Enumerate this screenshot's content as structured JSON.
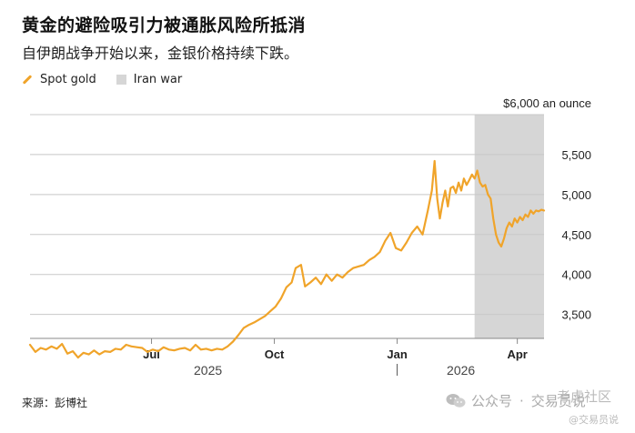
{
  "title": "黄金的避险吸引力被通胀风险所抵消",
  "subtitle": "自伊朗战争开始以来，金银价格持续下跌。",
  "legend": [
    {
      "label": "Spot gold",
      "color": "#f0a42a"
    },
    {
      "label": "Iran war",
      "color": "#d6d6d6"
    }
  ],
  "source": "来源：彭博社",
  "footer": {
    "brand": "公众号",
    "separator": "·",
    "account": "交易员说"
  },
  "watermark": {
    "main": "考虎社区",
    "sub": "@交易员说"
  },
  "chart_data": {
    "type": "line",
    "ylabel_unit": "$6,000 an ounce",
    "ylim": [
      3200,
      6000
    ],
    "yticks": [
      {
        "value": 6000,
        "label": "$6,000 an ounce"
      },
      {
        "value": 5500,
        "label": "5,500"
      },
      {
        "value": 5000,
        "label": "5,000"
      },
      {
        "value": 4500,
        "label": "4,500"
      },
      {
        "value": 4000,
        "label": "4,000"
      },
      {
        "value": 3500,
        "label": "3,500"
      }
    ],
    "xlim": [
      "2025-04-01",
      "2026-04-21"
    ],
    "xticks": [
      {
        "date": "2025-07-01",
        "label": "Jul"
      },
      {
        "date": "2025-10-01",
        "label": "Oct"
      },
      {
        "date": "2026-01-01",
        "label": "Jan"
      },
      {
        "date": "2026-04-01",
        "label": "Apr"
      }
    ],
    "year_labels": [
      {
        "date": "2025-08-15",
        "label": "2025"
      },
      {
        "date": "2026-02-15",
        "label": "2026"
      }
    ],
    "year_divider": "2026-01-01",
    "shaded_period": {
      "name": "Iran war",
      "start": "2026-02-28",
      "end": "2026-04-21"
    },
    "grid": true,
    "series": [
      {
        "name": "Spot gold",
        "color": "#f0a42a",
        "points": [
          [
            "2025-04-01",
            3120
          ],
          [
            "2025-04-05",
            3030
          ],
          [
            "2025-04-09",
            3080
          ],
          [
            "2025-04-13",
            3060
          ],
          [
            "2025-04-17",
            3100
          ],
          [
            "2025-04-21",
            3070
          ],
          [
            "2025-04-25",
            3130
          ],
          [
            "2025-04-29",
            3010
          ],
          [
            "2025-05-03",
            3040
          ],
          [
            "2025-05-07",
            2960
          ],
          [
            "2025-05-11",
            3020
          ],
          [
            "2025-05-15",
            3000
          ],
          [
            "2025-05-19",
            3050
          ],
          [
            "2025-05-23",
            3000
          ],
          [
            "2025-05-27",
            3040
          ],
          [
            "2025-05-31",
            3030
          ],
          [
            "2025-06-04",
            3070
          ],
          [
            "2025-06-08",
            3060
          ],
          [
            "2025-06-12",
            3120
          ],
          [
            "2025-06-16",
            3100
          ],
          [
            "2025-06-20",
            3090
          ],
          [
            "2025-06-24",
            3080
          ],
          [
            "2025-06-28",
            3030
          ],
          [
            "2025-07-02",
            3060
          ],
          [
            "2025-07-06",
            3040
          ],
          [
            "2025-07-10",
            3090
          ],
          [
            "2025-07-14",
            3060
          ],
          [
            "2025-07-18",
            3050
          ],
          [
            "2025-07-22",
            3070
          ],
          [
            "2025-07-26",
            3080
          ],
          [
            "2025-07-30",
            3050
          ],
          [
            "2025-08-03",
            3120
          ],
          [
            "2025-08-07",
            3060
          ],
          [
            "2025-08-11",
            3070
          ],
          [
            "2025-08-15",
            3050
          ],
          [
            "2025-08-19",
            3070
          ],
          [
            "2025-08-23",
            3060
          ],
          [
            "2025-08-27",
            3100
          ],
          [
            "2025-08-31",
            3160
          ],
          [
            "2025-09-04",
            3240
          ],
          [
            "2025-09-08",
            3330
          ],
          [
            "2025-09-12",
            3370
          ],
          [
            "2025-09-16",
            3400
          ],
          [
            "2025-09-20",
            3440
          ],
          [
            "2025-09-24",
            3480
          ],
          [
            "2025-09-28",
            3540
          ],
          [
            "2025-10-02",
            3600
          ],
          [
            "2025-10-06",
            3700
          ],
          [
            "2025-10-10",
            3840
          ],
          [
            "2025-10-14",
            3900
          ],
          [
            "2025-10-17",
            4080
          ],
          [
            "2025-10-21",
            4120
          ],
          [
            "2025-10-24",
            3850
          ],
          [
            "2025-10-28",
            3900
          ],
          [
            "2025-11-01",
            3960
          ],
          [
            "2025-11-05",
            3880
          ],
          [
            "2025-11-09",
            4000
          ],
          [
            "2025-11-13",
            3920
          ],
          [
            "2025-11-17",
            4000
          ],
          [
            "2025-11-21",
            3960
          ],
          [
            "2025-11-25",
            4030
          ],
          [
            "2025-11-29",
            4080
          ],
          [
            "2025-12-03",
            4100
          ],
          [
            "2025-12-07",
            4120
          ],
          [
            "2025-12-11",
            4180
          ],
          [
            "2025-12-15",
            4220
          ],
          [
            "2025-12-19",
            4280
          ],
          [
            "2025-12-23",
            4420
          ],
          [
            "2025-12-27",
            4520
          ],
          [
            "2025-12-31",
            4330
          ],
          [
            "2026-01-04",
            4300
          ],
          [
            "2026-01-08",
            4400
          ],
          [
            "2026-01-12",
            4520
          ],
          [
            "2026-01-16",
            4600
          ],
          [
            "2026-01-20",
            4500
          ],
          [
            "2026-01-24",
            4800
          ],
          [
            "2026-01-27",
            5050
          ],
          [
            "2026-01-29",
            5420
          ],
          [
            "2026-01-31",
            4950
          ],
          [
            "2026-02-02",
            4700
          ],
          [
            "2026-02-04",
            4900
          ],
          [
            "2026-02-06",
            5050
          ],
          [
            "2026-02-08",
            4850
          ],
          [
            "2026-02-10",
            5080
          ],
          [
            "2026-02-12",
            5100
          ],
          [
            "2026-02-14",
            5020
          ],
          [
            "2026-02-16",
            5150
          ],
          [
            "2026-02-18",
            5050
          ],
          [
            "2026-02-20",
            5200
          ],
          [
            "2026-02-22",
            5120
          ],
          [
            "2026-02-24",
            5180
          ],
          [
            "2026-02-26",
            5250
          ],
          [
            "2026-02-28",
            5200
          ],
          [
            "2026-03-02",
            5300
          ],
          [
            "2026-03-04",
            5150
          ],
          [
            "2026-03-06",
            5100
          ],
          [
            "2026-03-08",
            5120
          ],
          [
            "2026-03-10",
            5000
          ],
          [
            "2026-03-12",
            4950
          ],
          [
            "2026-03-14",
            4700
          ],
          [
            "2026-03-16",
            4500
          ],
          [
            "2026-03-18",
            4400
          ],
          [
            "2026-03-20",
            4350
          ],
          [
            "2026-03-22",
            4450
          ],
          [
            "2026-03-24",
            4580
          ],
          [
            "2026-03-26",
            4650
          ],
          [
            "2026-03-28",
            4600
          ],
          [
            "2026-03-30",
            4700
          ],
          [
            "2026-04-01",
            4650
          ],
          [
            "2026-04-03",
            4720
          ],
          [
            "2026-04-05",
            4680
          ],
          [
            "2026-04-07",
            4750
          ],
          [
            "2026-04-09",
            4720
          ],
          [
            "2026-04-11",
            4800
          ],
          [
            "2026-04-13",
            4760
          ],
          [
            "2026-04-15",
            4800
          ],
          [
            "2026-04-17",
            4790
          ],
          [
            "2026-04-19",
            4810
          ],
          [
            "2026-04-21",
            4800
          ]
        ]
      }
    ]
  }
}
